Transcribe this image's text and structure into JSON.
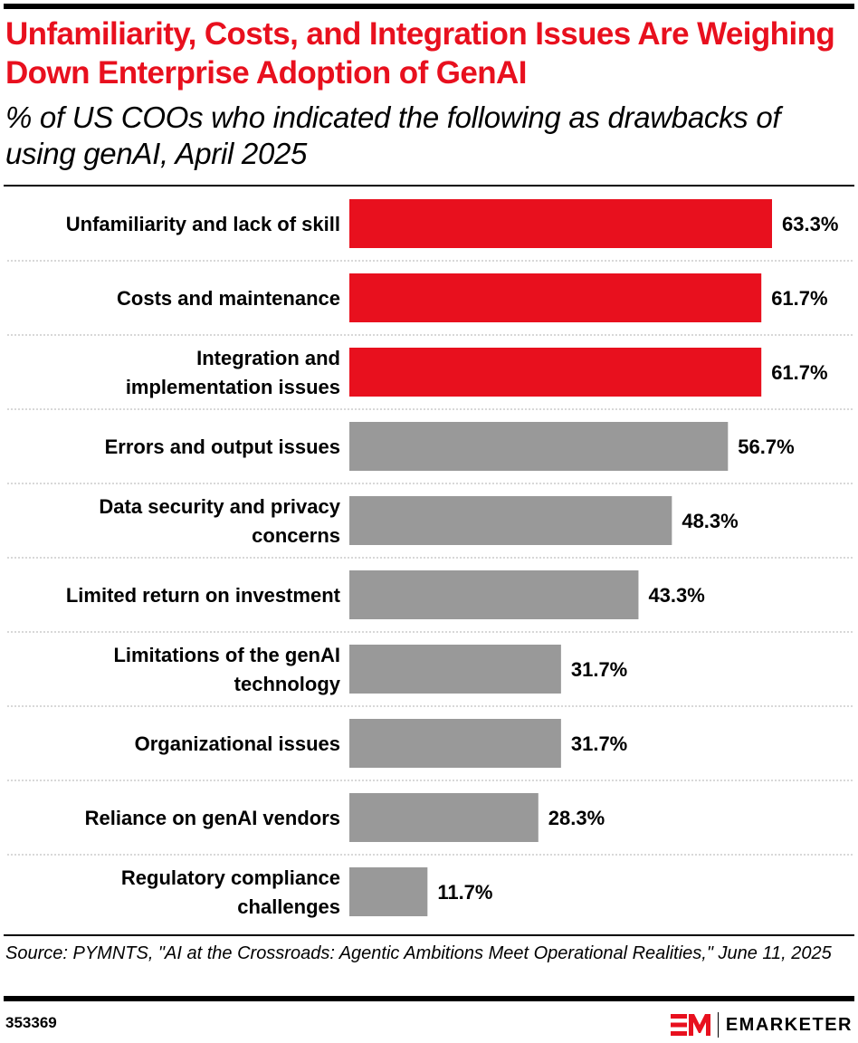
{
  "header": {
    "title": "Unfamiliarity, Costs, and Integration Issues Are Weighing Down Enterprise Adoption of GenAI",
    "subtitle": "% of US COOs who indicated the following as drawbacks of using genAI, April 2025"
  },
  "footer": {
    "source": "Source: PYMNTS, \"AI at the Crossroads: Agentic Ambitions Meet Operational Realities,\" June 11, 2025",
    "chart_id": "353369",
    "brand": "EMARKETER"
  },
  "colors": {
    "highlight": "#e8101e",
    "neutral": "#999999",
    "text": "#000000",
    "divider": "#cccccc"
  },
  "chart_data": {
    "type": "bar",
    "orientation": "horizontal",
    "title": "Unfamiliarity, Costs, and Integration Issues Are Weighing Down Enterprise Adoption of GenAI",
    "subtitle": "% of US COOs who indicated the following as drawbacks of using genAI, April 2025",
    "xlabel": "",
    "ylabel": "",
    "grid": false,
    "legend": "none",
    "xlim": [
      0,
      70
    ],
    "categories": [
      [
        "Unfamiliarity and lack of skill"
      ],
      [
        "Costs and maintenance"
      ],
      [
        "Integration and",
        "implementation issues"
      ],
      [
        "Errors and output issues"
      ],
      [
        "Data security and privacy",
        "concerns"
      ],
      [
        "Limited return on investment"
      ],
      [
        "Limitations of the genAI",
        "technology"
      ],
      [
        "Organizational issues"
      ],
      [
        "Reliance on genAI vendors"
      ],
      [
        "Regulatory compliance",
        "challenges"
      ]
    ],
    "values": [
      63.3,
      61.7,
      61.7,
      56.7,
      48.3,
      43.3,
      31.7,
      31.7,
      28.3,
      11.7
    ],
    "value_labels": [
      "63.3%",
      "61.7%",
      "61.7%",
      "56.7%",
      "48.3%",
      "43.3%",
      "31.7%",
      "31.7%",
      "28.3%",
      "11.7%"
    ],
    "highlighted": [
      true,
      true,
      true,
      false,
      false,
      false,
      false,
      false,
      false,
      false
    ]
  }
}
